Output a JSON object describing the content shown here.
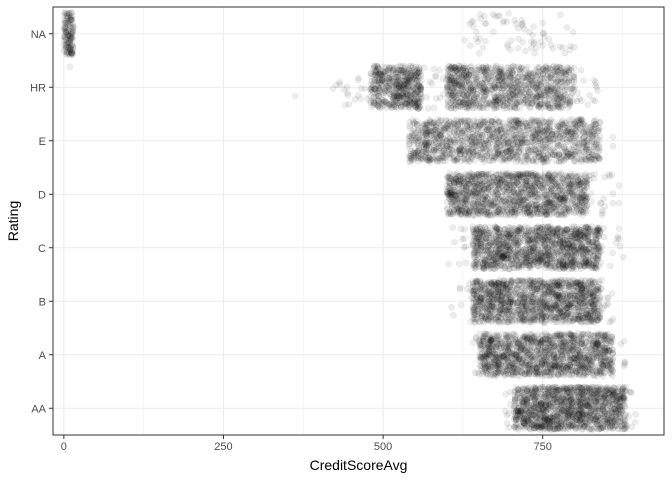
{
  "chart_data": {
    "type": "scatter",
    "jitter": true,
    "xlabel": "CreditScoreAvg",
    "ylabel": "Rating",
    "xlim": [
      -17,
      940
    ],
    "x_ticks": [
      0,
      250,
      500,
      750
    ],
    "categories": [
      "AA",
      "A",
      "B",
      "C",
      "D",
      "E",
      "HR",
      "NA"
    ],
    "grid": true,
    "point_color": "#000000",
    "point_alpha": 0.07,
    "groups": [
      {
        "category": "AA",
        "dense_range": [
          705,
          880
        ],
        "sparse_range": [
          690,
          900
        ],
        "n_dense": 1300,
        "n_sparse": 80
      },
      {
        "category": "A",
        "dense_range": [
          650,
          860
        ],
        "sparse_range": [
          640,
          880
        ],
        "n_dense": 1300,
        "n_sparse": 80
      },
      {
        "category": "B",
        "dense_range": [
          640,
          840
        ],
        "sparse_range": [
          600,
          860
        ],
        "n_dense": 1300,
        "n_sparse": 90
      },
      {
        "category": "C",
        "dense_range": [
          640,
          840
        ],
        "sparse_range": [
          600,
          880
        ],
        "n_dense": 1300,
        "n_sparse": 90
      },
      {
        "category": "D",
        "dense_range": [
          600,
          820
        ],
        "sparse_range": [
          600,
          870
        ],
        "n_dense": 1300,
        "n_sparse": 70
      },
      {
        "category": "E",
        "dense_range": [
          540,
          840
        ],
        "sparse_range": [
          540,
          870
        ],
        "n_dense": 1300,
        "n_sparse": 80
      },
      {
        "category": "HR",
        "clusters": [
          [
            480,
            520,
            200
          ],
          [
            520,
            560,
            300
          ],
          [
            600,
            640,
            250
          ],
          [
            640,
            800,
            700
          ]
        ],
        "sparse_range": [
          420,
          840
        ],
        "n_sparse": 160,
        "outliers": [
          362,
          10
        ]
      },
      {
        "category": "NA",
        "clusters": [
          [
            0,
            15,
            140
          ]
        ],
        "sparse_range": [
          620,
          800
        ],
        "n_sparse": 70
      }
    ]
  }
}
